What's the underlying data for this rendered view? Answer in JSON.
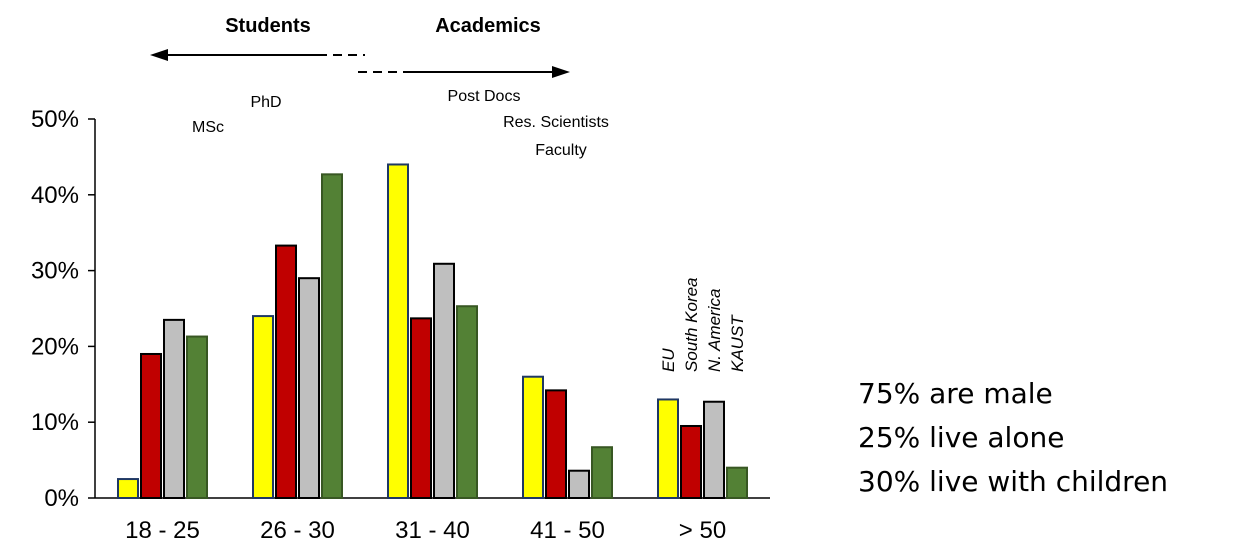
{
  "chart_data": {
    "type": "bar",
    "categories": [
      "18 - 25",
      "26 - 30",
      "31 - 40",
      "41 - 50",
      "> 50"
    ],
    "series": [
      {
        "name": "EU",
        "color": "#ffff00",
        "values": [
          2.5,
          24,
          44,
          16,
          13
        ]
      },
      {
        "name": "South Korea",
        "color": "#c00000",
        "values": [
          19,
          33.3,
          23.7,
          14.2,
          9.5
        ]
      },
      {
        "name": "N. America",
        "color": "#bfbfbf",
        "values": [
          23.5,
          29,
          30.9,
          3.6,
          12.7
        ]
      },
      {
        "name": "KAUST",
        "color": "#538135",
        "values": [
          21.3,
          42.7,
          25.3,
          6.7,
          4
        ]
      }
    ],
    "ylim": [
      0,
      50
    ],
    "yticks": [
      "0%",
      "10%",
      "20%",
      "30%",
      "40%",
      "50%"
    ],
    "grid": false,
    "legend": "rotated labels above > 50 group",
    "annotations": {
      "students": "Students",
      "academics": "Academics",
      "msc": "MSc",
      "phd": "PhD",
      "postdocs": "Post Docs",
      "res_scientists": "Res. Scientists",
      "faculty": "Faculty"
    }
  },
  "facts": [
    "75% are male",
    "25% live alone",
    "30% live with children"
  ]
}
